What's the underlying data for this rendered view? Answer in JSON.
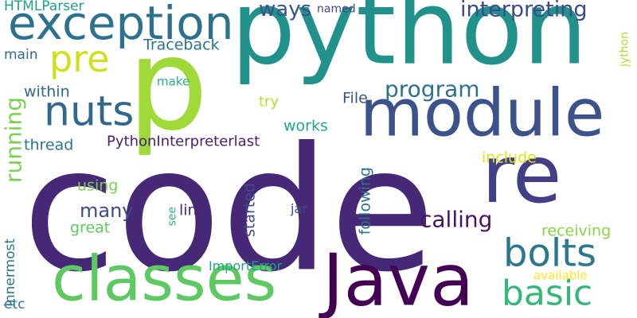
{
  "words": [
    {
      "text": "code",
      "color": "#472877"
    },
    {
      "text": "python",
      "color": "#21918c"
    },
    {
      "text": "module",
      "color": "#3b528b"
    },
    {
      "text": "Java",
      "color": "#440154"
    },
    {
      "text": "classes",
      "color": "#5ec962"
    },
    {
      "text": "re",
      "color": "#433e85"
    },
    {
      "text": "exception",
      "color": "#2c728e"
    },
    {
      "text": "p",
      "color": "#a0da39"
    },
    {
      "text": "nuts",
      "color": "#31688e"
    },
    {
      "text": "pre",
      "color": "#d0e11c"
    },
    {
      "text": "bolts",
      "color": "#2a788e"
    },
    {
      "text": "basic",
      "color": "#35b779"
    },
    {
      "text": "running",
      "color": "#7ad151"
    },
    {
      "text": "program",
      "color": "#2c728e"
    },
    {
      "text": "interpreting",
      "color": "#3e4a89"
    },
    {
      "text": "ways",
      "color": "#3b528b"
    },
    {
      "text": "calling",
      "color": "#471365"
    },
    {
      "text": "many",
      "color": "#3e4a89"
    },
    {
      "text": "HTMLParser",
      "color": "#1f9e89"
    },
    {
      "text": "Traceback",
      "color": "#2c728e"
    },
    {
      "text": "PythonInterpreterlast",
      "color": "#481f70"
    },
    {
      "text": "named",
      "color": "#414487"
    },
    {
      "text": "main",
      "color": "#31688e"
    },
    {
      "text": "within",
      "color": "#31688e"
    },
    {
      "text": "make",
      "color": "#26ad81"
    },
    {
      "text": "try",
      "color": "#b5de2b"
    },
    {
      "text": "File",
      "color": "#3b528b"
    },
    {
      "text": "works",
      "color": "#22a884"
    },
    {
      "text": "thread",
      "color": "#2a788e"
    },
    {
      "text": "include",
      "color": "#dde318"
    },
    {
      "text": "using",
      "color": "#7ad151"
    },
    {
      "text": "following",
      "color": "#2c728e"
    },
    {
      "text": "started",
      "color": "#3e4a89"
    },
    {
      "text": "line",
      "color": "#482878"
    },
    {
      "text": "see",
      "color": "#2db27d"
    },
    {
      "text": "jar",
      "color": "#3e4a89"
    },
    {
      "text": "great",
      "color": "#5ec962"
    },
    {
      "text": "receiving",
      "color": "#86d549"
    },
    {
      "text": "innermost",
      "color": "#2a788e"
    },
    {
      "text": "ImportError",
      "color": "#20a386"
    },
    {
      "text": "available",
      "color": "#fde725"
    },
    {
      "text": "etc",
      "color": "#2c728e"
    },
    {
      "text": "jython",
      "color": "#addc30"
    }
  ]
}
